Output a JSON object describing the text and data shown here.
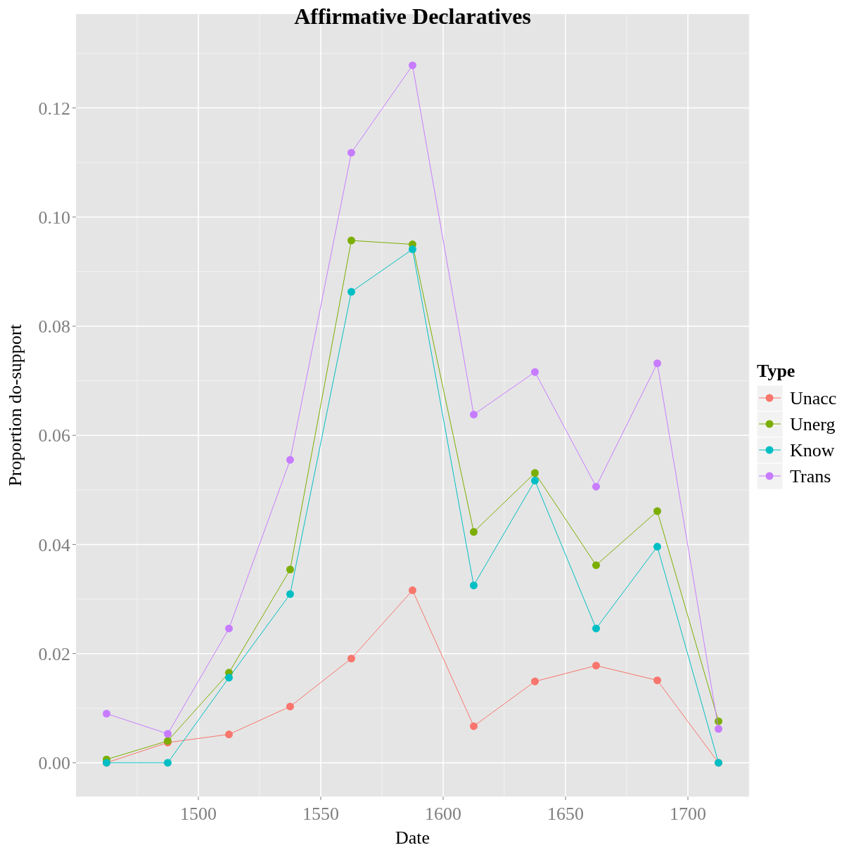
{
  "chart_data": {
    "type": "line",
    "title": "Affirmative Declaratives",
    "xlabel": "Date",
    "ylabel": "Proportion do-support",
    "legend_title": "Type",
    "legend": "right",
    "grid": true,
    "marker": "circle",
    "x": [
      1462.5,
      1487.5,
      1512.5,
      1537.5,
      1562.5,
      1587.5,
      1612.5,
      1637.5,
      1662.5,
      1687.5,
      1712.5
    ],
    "xlim": [
      1450,
      1725
    ],
    "xticks": [
      1500,
      1550,
      1600,
      1650,
      1700
    ],
    "ylim": [
      -0.0062,
      0.1372
    ],
    "yticks": [
      {
        "value": 0,
        "label": "0.00"
      },
      {
        "value": 0.02,
        "label": "0.02"
      },
      {
        "value": 0.04,
        "label": "0.04"
      },
      {
        "value": 0.06,
        "label": "0.06"
      },
      {
        "value": 0.08,
        "label": "0.08"
      },
      {
        "value": 0.1,
        "label": "0.10"
      },
      {
        "value": 0.12,
        "label": "0.12"
      }
    ],
    "series": [
      {
        "name": "Unacc",
        "color": "#f8766d",
        "values": [
          0,
          0.0037,
          0.0052,
          0.0103,
          0.0191,
          0.0316,
          0.0067,
          0.0149,
          0.0178,
          0.0151,
          0
        ]
      },
      {
        "name": "Unerg",
        "color": "#7cae00",
        "values": [
          0.0006,
          0.004,
          0.0165,
          0.0354,
          0.0957,
          0.095,
          0.0423,
          0.0531,
          0.0362,
          0.0461,
          0.0076
        ]
      },
      {
        "name": "Know",
        "color": "#00bfc4",
        "values": [
          0,
          0,
          0.0156,
          0.0309,
          0.0863,
          0.0941,
          0.0325,
          0.0517,
          0.0246,
          0.0396,
          0
        ]
      },
      {
        "name": "Trans",
        "color": "#c77cff",
        "values": [
          0.009,
          0.0053,
          0.0246,
          0.0555,
          0.1118,
          0.1278,
          0.0638,
          0.0716,
          0.0506,
          0.0732,
          0.0062
        ]
      }
    ]
  }
}
